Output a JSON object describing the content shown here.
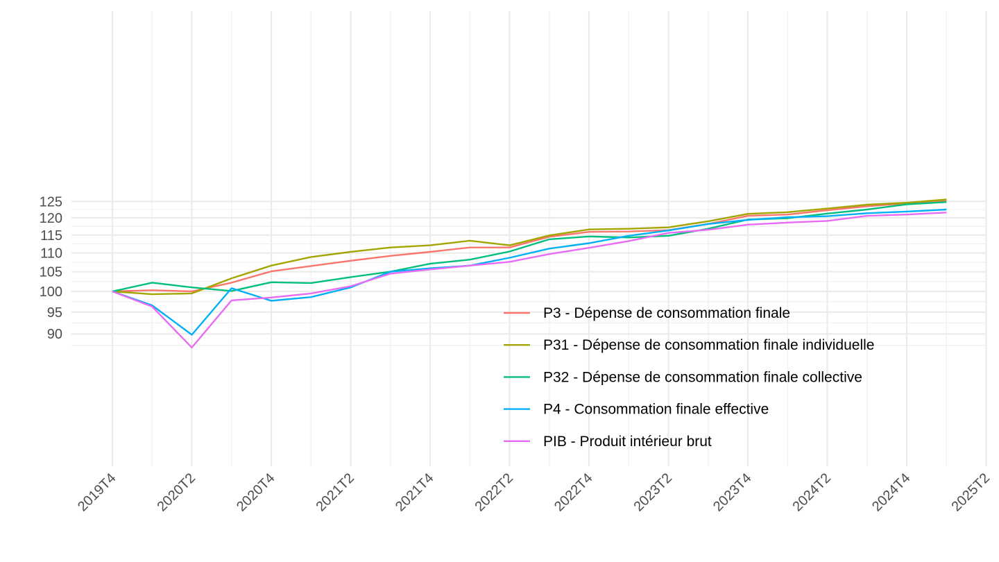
{
  "chart_data": {
    "type": "line",
    "title": "",
    "xlabel": "",
    "ylabel": "",
    "y_scale": "log",
    "ylim": [
      85.6,
      127.4
    ],
    "grid": true,
    "legend_position": "inside-bottom-right",
    "x": [
      "2019T4",
      "2020T1",
      "2020T2",
      "2020T3",
      "2020T4",
      "2021T1",
      "2021T2",
      "2021T3",
      "2021T4",
      "2022T1",
      "2022T2",
      "2022T3",
      "2022T4",
      "2023T1",
      "2023T2",
      "2023T3",
      "2023T4",
      "2024T1",
      "2024T2",
      "2024T3",
      "2024T4",
      "2025T1"
    ],
    "x_ticks": [
      "2019T4",
      "2020T2",
      "2020T4",
      "2021T2",
      "2021T4",
      "2022T2",
      "2022T4",
      "2023T2",
      "2023T4",
      "2024T2",
      "2024T4",
      "2025T2"
    ],
    "y_ticks": [
      90,
      95,
      100,
      105,
      110,
      115,
      120,
      125
    ],
    "series": [
      {
        "name": "P3 - Dépense de consommation finale",
        "color": "#F8766D",
        "values": [
          100,
          100.3,
          100.0,
          102.2,
          105.1,
          106.5,
          107.9,
          109.2,
          110.3,
          111.5,
          111.5,
          114.5,
          115.9,
          116.0,
          116.4,
          118.2,
          120.6,
          121.0,
          122.3,
          123.5,
          124.4,
          125.3
        ]
      },
      {
        "name": "P31 - Dépense de consommation finale individuelle",
        "color": "#A3A500",
        "values": [
          100,
          99.3,
          99.5,
          103.3,
          106.6,
          108.9,
          110.3,
          111.5,
          112.1,
          113.4,
          112.1,
          114.9,
          116.6,
          116.8,
          117.2,
          119.0,
          121.2,
          121.7,
          122.8,
          124.0,
          124.6,
          125.6
        ]
      },
      {
        "name": "P32 - Dépense de consommation finale collective",
        "color": "#00BF7D",
        "values": [
          100,
          102.2,
          101.0,
          100.1,
          102.3,
          102.1,
          103.6,
          105.0,
          107.1,
          108.2,
          110.4,
          113.8,
          114.6,
          114.3,
          114.8,
          116.8,
          119.5,
          119.9,
          121.3,
          122.5,
          124.1,
          124.8
        ]
      },
      {
        "name": "P4 - Consommation finale effective",
        "color": "#00B0F6",
        "values": [
          100,
          96.6,
          89.8,
          100.8,
          97.7,
          98.6,
          101.0,
          105.0,
          105.9,
          106.6,
          108.7,
          111.2,
          112.7,
          114.8,
          116.3,
          118.2,
          119.4,
          120.2,
          120.5,
          121.4,
          121.9,
          122.5
        ]
      },
      {
        "name": "PIB - Produit intérieur brut",
        "color": "#E76BF3",
        "values": [
          100,
          96.3,
          87.0,
          97.8,
          98.5,
          99.5,
          101.3,
          104.5,
          105.6,
          106.6,
          107.6,
          109.7,
          111.4,
          113.3,
          115.6,
          116.5,
          118.0,
          118.6,
          119.1,
          120.6,
          121.0,
          121.6
        ]
      }
    ]
  }
}
